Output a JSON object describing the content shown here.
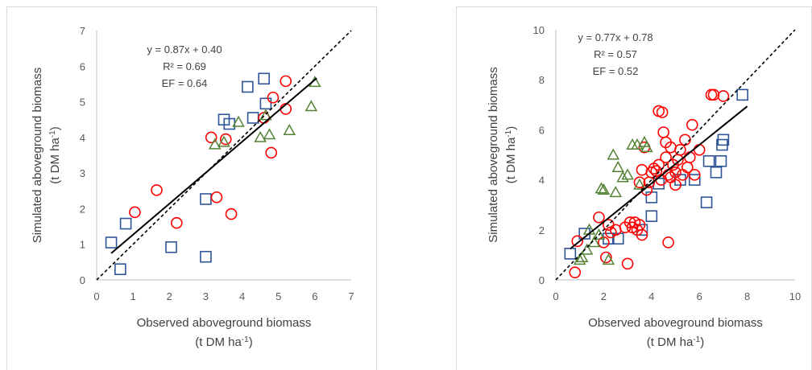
{
  "chart_data": [
    {
      "type": "scatter",
      "xlabel": "Observed aboveground biomass",
      "xlabel_unit": "(t DM ha-1)",
      "ylabel": "Simulated aboveground biomass",
      "ylabel_unit": "(t DM ha-1)",
      "xlim": [
        0,
        7
      ],
      "ylim": [
        0,
        7
      ],
      "x_ticks": [
        "0",
        "1",
        "2",
        "3",
        "4",
        "5",
        "6",
        "7"
      ],
      "y_ticks": [
        "0",
        "1",
        "2",
        "3",
        "4",
        "5",
        "6",
        "7"
      ],
      "grid": false,
      "annotations": [
        "y = 0.87x + 0.40",
        "R² = 0.69",
        "EF = 0.64"
      ],
      "regression": {
        "slope": 0.87,
        "intercept": 0.4,
        "x_range": [
          0.4,
          6.05
        ]
      },
      "one_to_one_line": true,
      "series": [
        {
          "marker": "square",
          "color": "#2f5597",
          "points": [
            [
              0.4,
              1.05
            ],
            [
              0.65,
              0.3
            ],
            [
              0.8,
              1.58
            ],
            [
              2.05,
              0.92
            ],
            [
              3.0,
              0.65
            ],
            [
              3.0,
              2.27
            ],
            [
              3.5,
              4.5
            ],
            [
              3.65,
              4.38
            ],
            [
              4.15,
              5.42
            ],
            [
              4.3,
              4.55
            ],
            [
              4.6,
              5.65
            ],
            [
              4.65,
              4.95
            ]
          ]
        },
        {
          "marker": "circle",
          "color": "#ff0000",
          "points": [
            [
              1.05,
              1.9
            ],
            [
              1.65,
              2.52
            ],
            [
              2.2,
              1.6
            ],
            [
              3.15,
              4.0
            ],
            [
              3.3,
              2.32
            ],
            [
              3.55,
              3.95
            ],
            [
              3.7,
              1.85
            ],
            [
              4.6,
              4.55
            ],
            [
              4.8,
              3.57
            ],
            [
              4.85,
              5.12
            ],
            [
              5.2,
              5.58
            ],
            [
              5.2,
              4.8
            ]
          ]
        },
        {
          "marker": "triangle",
          "color": "#548235",
          "points": [
            [
              3.25,
              3.8
            ],
            [
              3.5,
              3.87
            ],
            [
              3.9,
              4.43
            ],
            [
              4.5,
              4.0
            ],
            [
              4.65,
              4.62
            ],
            [
              4.75,
              4.08
            ],
            [
              5.3,
              4.2
            ],
            [
              5.9,
              4.87
            ],
            [
              6.0,
              5.55
            ]
          ]
        }
      ]
    },
    {
      "type": "scatter",
      "xlabel": "Observed aboveground biomass",
      "xlabel_unit": "(t DM ha-1)",
      "ylabel": "Simulated aboveground biomass",
      "ylabel_unit": "(t DM ha-1)",
      "xlim": [
        0,
        10
      ],
      "ylim": [
        0,
        10
      ],
      "x_ticks": [
        "0",
        "2",
        "4",
        "6",
        "8",
        "10"
      ],
      "y_ticks": [
        "0",
        "2",
        "4",
        "6",
        "8",
        "10"
      ],
      "grid": false,
      "annotations": [
        "y = 0.77x + 0.78",
        "R² = 0.57",
        "EF = 0.52"
      ],
      "regression": {
        "slope": 0.77,
        "intercept": 0.78,
        "x_range": [
          0.6,
          8.0
        ]
      },
      "one_to_one_line": true,
      "series": [
        {
          "marker": "square",
          "color": "#2f5597",
          "points": [
            [
              0.6,
              1.05
            ],
            [
              1.2,
              1.85
            ],
            [
              2.2,
              1.65
            ],
            [
              2.6,
              1.65
            ],
            [
              3.6,
              2.0
            ],
            [
              4.0,
              2.55
            ],
            [
              4.0,
              3.3
            ],
            [
              4.3,
              3.85
            ],
            [
              5.2,
              4.0
            ],
            [
              5.8,
              4.0
            ],
            [
              6.3,
              3.1
            ],
            [
              6.4,
              4.75
            ],
            [
              6.7,
              4.3
            ],
            [
              6.9,
              4.75
            ],
            [
              6.95,
              5.4
            ],
            [
              7.0,
              5.6
            ],
            [
              7.8,
              7.4
            ]
          ]
        },
        {
          "marker": "circle",
          "color": "#ff0000",
          "points": [
            [
              0.8,
              0.3
            ],
            [
              0.9,
              1.55
            ],
            [
              1.8,
              2.5
            ],
            [
              2.0,
              1.5
            ],
            [
              2.1,
              0.9
            ],
            [
              2.2,
              2.2
            ],
            [
              2.3,
              1.9
            ],
            [
              2.5,
              2.0
            ],
            [
              2.9,
              2.1
            ],
            [
              3.0,
              0.65
            ],
            [
              3.1,
              2.3
            ],
            [
              3.2,
              2.1
            ],
            [
              3.3,
              2.3
            ],
            [
              3.4,
              2.0
            ],
            [
              3.5,
              2.2
            ],
            [
              3.6,
              1.8
            ],
            [
              3.5,
              3.9
            ],
            [
              3.6,
              4.4
            ],
            [
              3.7,
              5.3
            ],
            [
              3.8,
              3.6
            ],
            [
              3.9,
              3.9
            ],
            [
              4.0,
              4.3
            ],
            [
              4.1,
              4.45
            ],
            [
              4.2,
              4.35
            ],
            [
              4.3,
              4.6
            ],
            [
              4.3,
              6.75
            ],
            [
              4.4,
              4.0
            ],
            [
              4.45,
              6.7
            ],
            [
              4.5,
              5.9
            ],
            [
              4.6,
              5.5
            ],
            [
              4.6,
              4.9
            ],
            [
              4.7,
              1.5
            ],
            [
              4.7,
              4.2
            ],
            [
              4.8,
              4.1
            ],
            [
              4.8,
              5.3
            ],
            [
              4.9,
              4.6
            ],
            [
              5.0,
              3.8
            ],
            [
              5.0,
              4.3
            ],
            [
              5.1,
              4.8
            ],
            [
              5.2,
              5.2
            ],
            [
              5.3,
              4.2
            ],
            [
              5.4,
              5.6
            ],
            [
              5.5,
              4.5
            ],
            [
              5.6,
              4.9
            ],
            [
              5.7,
              6.2
            ],
            [
              5.8,
              4.2
            ],
            [
              6.0,
              5.2
            ],
            [
              6.5,
              7.4
            ],
            [
              6.6,
              7.4
            ],
            [
              7.0,
              7.35
            ]
          ]
        },
        {
          "marker": "triangle",
          "color": "#548235",
          "points": [
            [
              1.0,
              0.8
            ],
            [
              1.1,
              0.9
            ],
            [
              1.3,
              1.2
            ],
            [
              1.4,
              2.0
            ],
            [
              1.6,
              1.5
            ],
            [
              1.9,
              3.65
            ],
            [
              2.0,
              3.6
            ],
            [
              2.2,
              0.8
            ],
            [
              2.4,
              5.0
            ],
            [
              2.5,
              3.5
            ],
            [
              2.6,
              4.5
            ],
            [
              2.8,
              4.1
            ],
            [
              3.0,
              4.2
            ],
            [
              3.2,
              5.4
            ],
            [
              3.4,
              5.4
            ],
            [
              3.5,
              3.8
            ],
            [
              3.7,
              5.5
            ],
            [
              3.8,
              5.3
            ],
            [
              1.8,
              1.8
            ]
          ]
        }
      ]
    }
  ]
}
